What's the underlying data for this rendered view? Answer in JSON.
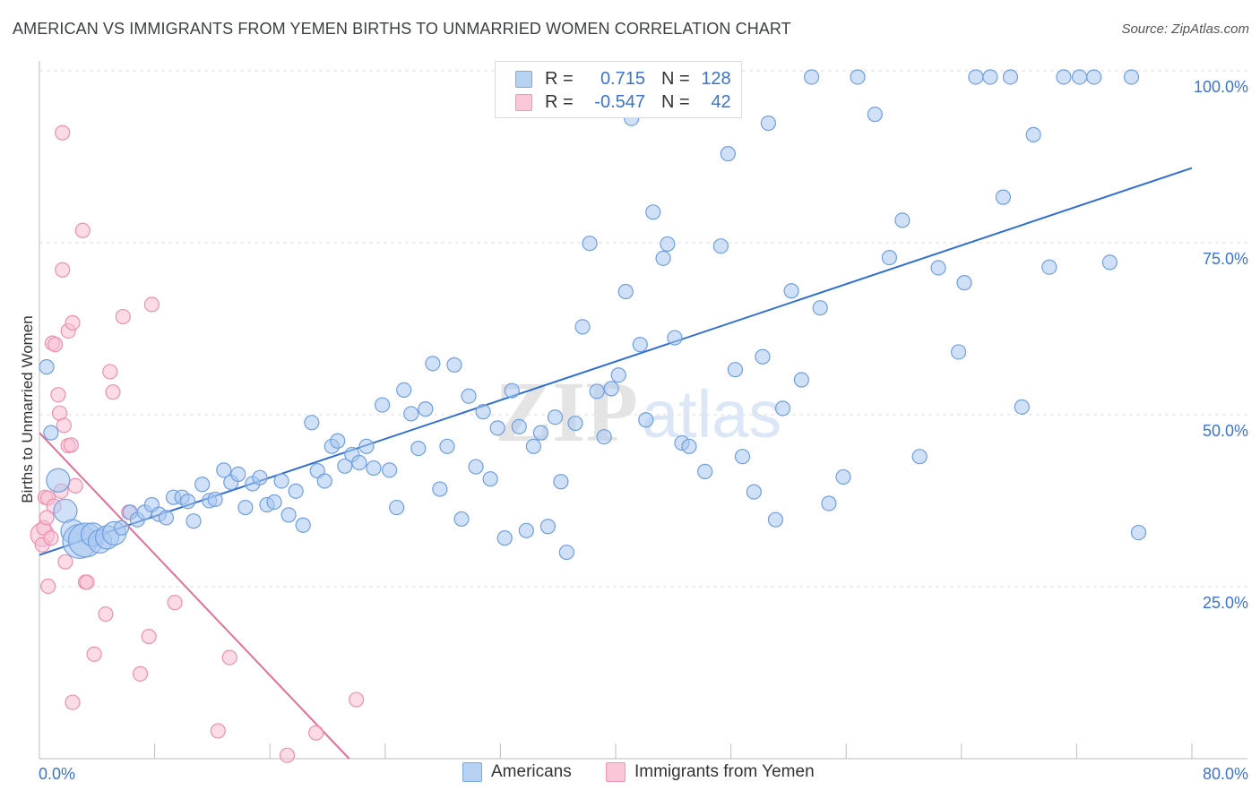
{
  "header": {
    "title": "AMERICAN VS IMMIGRANTS FROM YEMEN BIRTHS TO UNMARRIED WOMEN CORRELATION CHART",
    "source": "Source: ZipAtlas.com"
  },
  "watermark": {
    "zip": "ZIP",
    "atlas": "atlas"
  },
  "legend": {
    "r_label": "R =",
    "n_label": "N =",
    "rows": [
      {
        "series": "Americans",
        "r": "0.715",
        "n": "128",
        "color": "#7aa7e6"
      },
      {
        "series": "Immigrants from Yemen",
        "r": "-0.547",
        "n": "42",
        "color": "#f095b2"
      }
    ]
  },
  "bottom_legend": [
    "Americans",
    "Immigrants from Yemen"
  ],
  "colors": {
    "blue_fill": "#a9c8f0",
    "blue_stroke": "#6f9fe0",
    "blue_line": "#2f6fd1",
    "pink_fill": "#f7bfd1",
    "pink_stroke": "#ee8fb0",
    "pink_line": "#e0709a",
    "axis_text": "#3b73d1",
    "grid": "#dddddd"
  },
  "chart_data": {
    "type": "scatter",
    "title": "AMERICAN VS IMMIGRANTS FROM YEMEN BIRTHS TO UNMARRIED WOMEN CORRELATION CHART",
    "xlabel": "",
    "ylabel": "Births to Unmarried Women",
    "xlim": [
      0,
      80
    ],
    "ylim": [
      0,
      104
    ],
    "x_tick_labels": [
      "0.0%",
      "80.0%"
    ],
    "y_ticks": [
      25,
      50,
      75,
      100
    ],
    "y_tick_labels": [
      "25.0%",
      "50.0%",
      "75.0%",
      "100.0%"
    ],
    "grid": "horizontal dashed",
    "legend_position": "top-center",
    "series": [
      {
        "name": "Americans",
        "r": 0.715,
        "n": 128,
        "trend": {
          "x": [
            0,
            80
          ],
          "y": [
            30,
            87
          ]
        },
        "points": [
          [
            0.5,
            57.7,
            1
          ],
          [
            0.8,
            48,
            1
          ],
          [
            1.3,
            41,
            2
          ],
          [
            1.8,
            36.5,
            2
          ],
          [
            2.3,
            33.5,
            2
          ],
          [
            2.8,
            32,
            3
          ],
          [
            3.2,
            32.2,
            3
          ],
          [
            3.7,
            33,
            2
          ],
          [
            4.2,
            32,
            2
          ],
          [
            4.7,
            32.6,
            2
          ],
          [
            5.2,
            33.2,
            2
          ],
          [
            5.7,
            34,
            1
          ],
          [
            6.3,
            36.3,
            1
          ],
          [
            6.8,
            35.2,
            1
          ],
          [
            7.3,
            36.3,
            1
          ],
          [
            7.8,
            37.4,
            1
          ],
          [
            8.3,
            36,
            1
          ],
          [
            8.8,
            35.5,
            1
          ],
          [
            9.3,
            38.5,
            1
          ],
          [
            9.9,
            38.5,
            1
          ],
          [
            10.3,
            37.9,
            1
          ],
          [
            10.7,
            35,
            1
          ],
          [
            11.3,
            40.4,
            1
          ],
          [
            11.8,
            38,
            1
          ],
          [
            12.2,
            38.2,
            1
          ],
          [
            12.8,
            42.5,
            1
          ],
          [
            13.3,
            40.7,
            1
          ],
          [
            13.8,
            41.9,
            1
          ],
          [
            14.3,
            37,
            1
          ],
          [
            14.8,
            40.5,
            1
          ],
          [
            15.3,
            41.4,
            1
          ],
          [
            15.8,
            37.4,
            1
          ],
          [
            16.3,
            37.8,
            1
          ],
          [
            16.8,
            40.9,
            1
          ],
          [
            17.3,
            35.9,
            1
          ],
          [
            17.8,
            39.4,
            1
          ],
          [
            18.3,
            34.4,
            1
          ],
          [
            18.9,
            49.5,
            1
          ],
          [
            19.3,
            42.4,
            1
          ],
          [
            19.8,
            40.9,
            1
          ],
          [
            20.3,
            46,
            1
          ],
          [
            20.7,
            46.8,
            1
          ],
          [
            21.2,
            43.1,
            1
          ],
          [
            21.7,
            44.8,
            1
          ],
          [
            22.2,
            43.6,
            1
          ],
          [
            22.7,
            46,
            1
          ],
          [
            23.2,
            42.8,
            1
          ],
          [
            23.8,
            52.1,
            1
          ],
          [
            24.3,
            42.5,
            1
          ],
          [
            24.8,
            37,
            1
          ],
          [
            25.3,
            54.3,
            1
          ],
          [
            25.8,
            50.8,
            1
          ],
          [
            26.3,
            45.7,
            1
          ],
          [
            26.8,
            51.5,
            1
          ],
          [
            27.3,
            58.2,
            1
          ],
          [
            27.8,
            39.7,
            1
          ],
          [
            28.3,
            46,
            1
          ],
          [
            28.8,
            58,
            1
          ],
          [
            29.3,
            35.3,
            1
          ],
          [
            29.8,
            53.4,
            1
          ],
          [
            30.3,
            43,
            1
          ],
          [
            30.8,
            51.1,
            1
          ],
          [
            31.3,
            41.2,
            1
          ],
          [
            31.8,
            48.7,
            1
          ],
          [
            32.3,
            32.5,
            1
          ],
          [
            32.8,
            54.2,
            1
          ],
          [
            33.3,
            48.9,
            1
          ],
          [
            33.8,
            33.6,
            1
          ],
          [
            34.3,
            46,
            1
          ],
          [
            34.8,
            48,
            1
          ],
          [
            35.3,
            34.2,
            1
          ],
          [
            35.8,
            50.3,
            1
          ],
          [
            36.2,
            40.8,
            1
          ],
          [
            36.6,
            30.4,
            1
          ],
          [
            37.2,
            49.4,
            1
          ],
          [
            37.7,
            63.6,
            1
          ],
          [
            38.2,
            75.9,
            1
          ],
          [
            38.7,
            54.1,
            1
          ],
          [
            39.2,
            47.4,
            1
          ],
          [
            39.7,
            54.5,
            1
          ],
          [
            40.2,
            56.5,
            1
          ],
          [
            40.7,
            68.8,
            1
          ],
          [
            41.1,
            94.3,
            1
          ],
          [
            41.7,
            61,
            1
          ],
          [
            42.1,
            49.9,
            1
          ],
          [
            42.6,
            80.5,
            1
          ],
          [
            43.3,
            73.7,
            1
          ],
          [
            43.6,
            75.8,
            1
          ],
          [
            44.1,
            62,
            1
          ],
          [
            44.6,
            46.5,
            1
          ],
          [
            45.1,
            46,
            1
          ],
          [
            46.2,
            42.3,
            1
          ],
          [
            47.3,
            75.5,
            1
          ],
          [
            47.8,
            89.1,
            1
          ],
          [
            48.3,
            57.3,
            1
          ],
          [
            48.8,
            44.5,
            1
          ],
          [
            49.6,
            39.3,
            1
          ],
          [
            50.2,
            59.2,
            1
          ],
          [
            50.6,
            93.6,
            1
          ],
          [
            51.1,
            35.2,
            1
          ],
          [
            51.6,
            51.6,
            1
          ],
          [
            52.2,
            68.9,
            1
          ],
          [
            52.9,
            55.8,
            1
          ],
          [
            53.6,
            100.4,
            1
          ],
          [
            54.2,
            66.4,
            1
          ],
          [
            54.8,
            37.6,
            1
          ],
          [
            55.8,
            41.5,
            1
          ],
          [
            56.8,
            100.4,
            1
          ],
          [
            58.0,
            94.9,
            1
          ],
          [
            59.0,
            73.8,
            1
          ],
          [
            59.9,
            79.3,
            1
          ],
          [
            61.1,
            44.5,
            1
          ],
          [
            62.4,
            72.3,
            1
          ],
          [
            63.8,
            59.9,
            1
          ],
          [
            64.2,
            70.1,
            1
          ],
          [
            65.0,
            100.4,
            1
          ],
          [
            66.0,
            100.4,
            1
          ],
          [
            66.9,
            82.7,
            1
          ],
          [
            67.4,
            100.4,
            1
          ],
          [
            68.2,
            51.8,
            1
          ],
          [
            69.0,
            91.9,
            1
          ],
          [
            70.1,
            72.4,
            1
          ],
          [
            71.1,
            100.4,
            1
          ],
          [
            72.2,
            100.4,
            1
          ],
          [
            73.2,
            100.4,
            1
          ],
          [
            74.3,
            73.1,
            1
          ],
          [
            75.8,
            100.4,
            1
          ],
          [
            76.3,
            33.3,
            1
          ]
        ]
      },
      {
        "name": "Immigrants from Yemen",
        "r": -0.547,
        "n": 42,
        "trend": {
          "x": [
            0,
            21.5
          ],
          "y": [
            48,
            0
          ]
        },
        "points": [
          [
            0.2,
            33,
            2
          ],
          [
            0.2,
            31.5,
            1
          ],
          [
            0.4,
            38.5,
            1
          ],
          [
            0.6,
            38.4,
            1
          ],
          [
            0.6,
            25.4,
            1
          ],
          [
            0.9,
            61.2,
            1
          ],
          [
            1.0,
            37.2,
            1
          ],
          [
            1.1,
            61.0,
            1
          ],
          [
            1.3,
            53.6,
            1
          ],
          [
            1.4,
            50.9,
            1
          ],
          [
            1.5,
            39.4,
            1
          ],
          [
            1.6,
            92.2,
            1
          ],
          [
            1.6,
            72.0,
            1
          ],
          [
            1.7,
            49.1,
            1
          ],
          [
            1.8,
            29,
            1
          ],
          [
            2.0,
            46.1,
            1
          ],
          [
            2.0,
            63.0,
            1
          ],
          [
            2.2,
            46.2,
            1
          ],
          [
            2.3,
            64.2,
            1
          ],
          [
            2.3,
            8.3,
            1
          ],
          [
            2.5,
            40.2,
            1
          ],
          [
            3.0,
            77.8,
            1
          ],
          [
            3.2,
            26.0,
            1
          ],
          [
            3.3,
            26.0,
            1
          ],
          [
            3.8,
            15.4,
            1
          ],
          [
            4.6,
            21.3,
            1
          ],
          [
            4.9,
            57.0,
            1
          ],
          [
            5.1,
            54.0,
            1
          ],
          [
            5.8,
            65.1,
            1
          ],
          [
            6.2,
            36.3,
            1
          ],
          [
            7.0,
            12.5,
            1
          ],
          [
            7.6,
            18.0,
            1
          ],
          [
            7.8,
            66.9,
            1
          ],
          [
            9.4,
            23.0,
            1
          ],
          [
            12.4,
            4.1,
            1
          ],
          [
            13.2,
            14.9,
            1
          ],
          [
            17.2,
            0.5,
            1
          ],
          [
            19.2,
            3.8,
            1
          ],
          [
            22.0,
            8.7,
            1
          ],
          [
            0.3,
            34,
            1
          ],
          [
            0.5,
            35.5,
            1
          ],
          [
            0.8,
            32.5,
            1
          ]
        ]
      }
    ]
  }
}
